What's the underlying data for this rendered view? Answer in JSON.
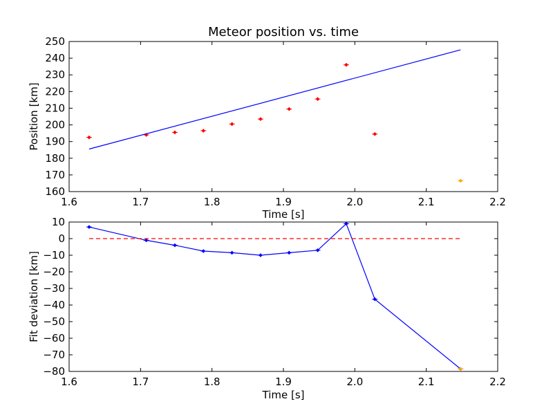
{
  "chart_data": [
    {
      "type": "scatter",
      "title": "Meteor position vs. time",
      "xlabel": "Time [s]",
      "ylabel": "Position [km]",
      "xlim": [
        1.6,
        2.2
      ],
      "ylim": [
        160,
        250
      ],
      "xticks": [
        "1.6",
        "1.7",
        "1.8",
        "1.9",
        "2.0",
        "2.1",
        "2.2"
      ],
      "yticks": [
        "160",
        "170",
        "180",
        "190",
        "200",
        "210",
        "220",
        "230",
        "240",
        "250"
      ],
      "grid": false,
      "series": [
        {
          "kind": "points",
          "color": "#ff0000",
          "x": [
            1.628,
            1.708,
            1.748,
            1.788,
            1.828,
            1.868,
            1.908,
            1.948,
            1.988,
            2.028
          ],
          "y": [
            192.5,
            194.0,
            195.5,
            196.5,
            200.5,
            203.5,
            209.5,
            215.5,
            236.0,
            194.5
          ]
        },
        {
          "kind": "points",
          "color": "#ffa500",
          "x": [
            2.148
          ],
          "y": [
            166.5
          ]
        },
        {
          "kind": "line",
          "color": "#0000ff",
          "x": [
            1.628,
            2.148
          ],
          "y": [
            185.5,
            245.0
          ]
        }
      ]
    },
    {
      "type": "line",
      "title": "",
      "xlabel": "Time [s]",
      "ylabel": "Fit deviation [km]",
      "xlim": [
        1.6,
        2.2
      ],
      "ylim": [
        -80,
        10
      ],
      "xticks": [
        "1.6",
        "1.7",
        "1.8",
        "1.9",
        "2.0",
        "2.1",
        "2.2"
      ],
      "yticks": [
        "10",
        "0",
        "−10",
        "−20",
        "−30",
        "−40",
        "−50",
        "−60",
        "−70",
        "−80"
      ],
      "yticks_values": [
        10,
        0,
        -10,
        -20,
        -30,
        -40,
        -50,
        -60,
        -70,
        -80
      ],
      "grid": false,
      "series": [
        {
          "kind": "line-markers",
          "color": "#0000ff",
          "x": [
            1.628,
            1.708,
            1.748,
            1.788,
            1.828,
            1.868,
            1.908,
            1.948,
            1.988,
            2.028,
            2.148
          ],
          "y": [
            7.0,
            -1.0,
            -4.0,
            -7.5,
            -8.5,
            -10.0,
            -8.5,
            -7.0,
            9.0,
            -36.5,
            -78.5
          ]
        },
        {
          "kind": "dashed",
          "color": "#ff0000",
          "x": [
            1.628,
            2.148
          ],
          "y": [
            0,
            0
          ]
        },
        {
          "kind": "points",
          "color": "#ffa500",
          "x": [
            2.148
          ],
          "y": [
            -78.5
          ]
        }
      ]
    }
  ]
}
